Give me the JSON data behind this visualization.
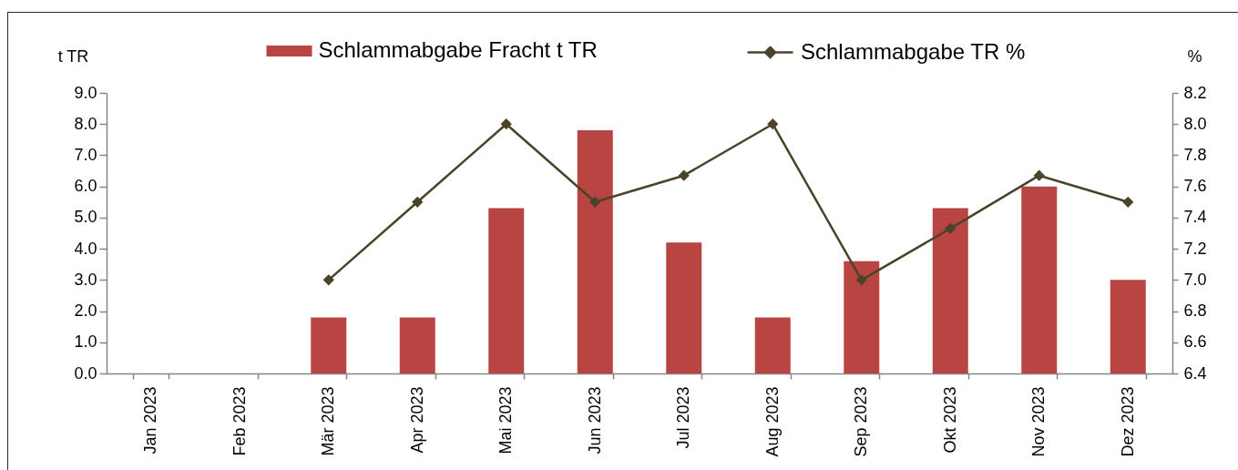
{
  "chart_data": {
    "type": "bar",
    "categories": [
      "Jan 2023",
      "Feb 2023",
      "Mär 2023",
      "Apr 2023",
      "Mai 2023",
      "Jun 2023",
      "Jul 2023",
      "Aug 2023",
      "Sep 2023",
      "Okt 2023",
      "Nov 2023",
      "Dez 2023"
    ],
    "series": [
      {
        "name": "Schlammabgabe Fracht t TR",
        "color": "#b94542",
        "values": [
          null,
          null,
          1.8,
          1.8,
          5.3,
          7.8,
          4.2,
          1.8,
          3.6,
          5.3,
          6.0,
          3.0
        ]
      },
      {
        "name": "Schlammabgabe TR %",
        "type": "line",
        "axis": "y2",
        "color": "#4b4329",
        "values": [
          null,
          null,
          7.0,
          7.5,
          8.0,
          7.5,
          7.67,
          8.0,
          7.0,
          7.33,
          7.67,
          7.5
        ]
      }
    ],
    "ylabel": "t TR",
    "y2label": "%",
    "ylim": [
      0,
      9
    ],
    "yticks": [
      {
        "value": 0,
        "label": "0.0"
      },
      {
        "value": 1,
        "label": "1.0"
      },
      {
        "value": 2,
        "label": "2.0"
      },
      {
        "value": 3,
        "label": "3.0"
      },
      {
        "value": 4,
        "label": "4.0"
      },
      {
        "value": 5,
        "label": "5.0"
      },
      {
        "value": 6,
        "label": "6.0"
      },
      {
        "value": 7,
        "label": "7.0"
      },
      {
        "value": 8,
        "label": "8.0"
      },
      {
        "value": 9,
        "label": "9.0"
      }
    ],
    "y2lim": [
      6.4,
      8.2
    ],
    "y2ticks": [
      6.4,
      6.6,
      6.8,
      {
        "value": 7,
        "label": "7.0"
      },
      7.2,
      7.4,
      7.6,
      7.8,
      {
        "value": 8,
        "label": "8.0"
      },
      8.2
    ],
    "legend": "top",
    "marker": "diamond",
    "line_style": "solid"
  }
}
